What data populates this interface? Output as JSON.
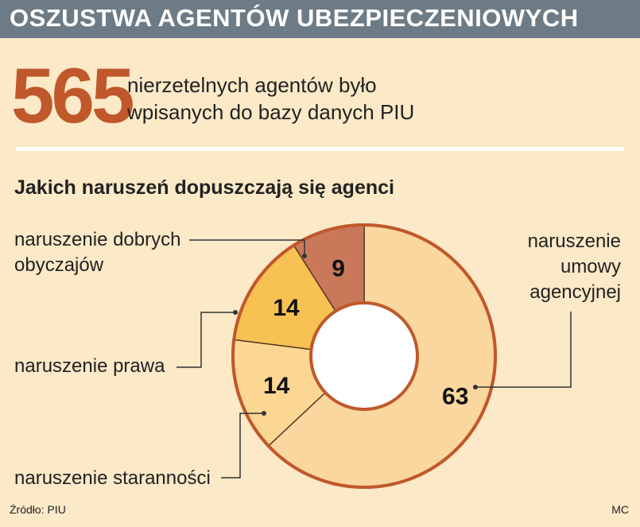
{
  "header": {
    "title": "OSZUSTWA AGENTÓW UBEZPIECZENIOWYCH"
  },
  "headline": {
    "number": "565",
    "caption_line1": "nierzetelnych agentów było",
    "caption_line2": "wpisanych do bazy danych PIU"
  },
  "footer": {
    "source": "Źródło: PIU",
    "credit": "MC"
  },
  "chart_data": {
    "type": "pie",
    "title": "Jakich naruszeń dopuszczają się agenci",
    "slices": [
      {
        "label": "naruszenie umowy agencyjnej",
        "label_lines": [
          "naruszenie",
          "umowy",
          "agencyjnej"
        ],
        "value": 63,
        "color": "#f9d79e"
      },
      {
        "label": "naruszenie staranności",
        "label_lines": [
          "naruszenie staranności"
        ],
        "value": 14,
        "color": "#fbd793"
      },
      {
        "label": "naruszenie prawa",
        "label_lines": [
          "naruszenie prawa"
        ],
        "value": 14,
        "color": "#f8c153"
      },
      {
        "label": "naruszenie dobrych obyczajów",
        "label_lines": [
          "naruszenie dobrych",
          "obyczajów"
        ],
        "value": 9,
        "color": "#c9795a"
      }
    ],
    "donut": true,
    "outline_color": "#c0582b"
  }
}
